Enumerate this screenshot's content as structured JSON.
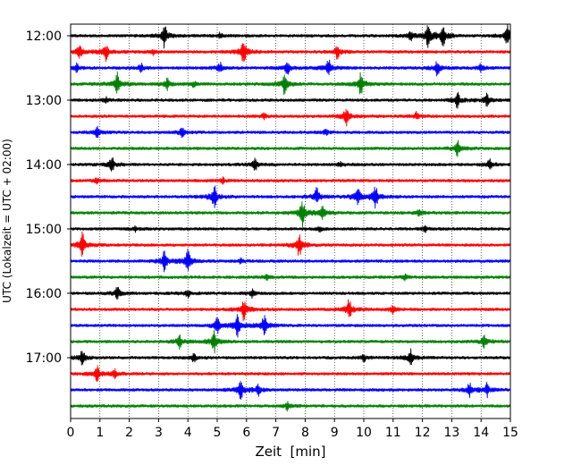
{
  "chart_data": {
    "type": "line",
    "title": "",
    "xlabel": "Zeit  [min]",
    "ylabel": "UTC (Lokalzeit = UTC + 02:00)",
    "xlim": [
      0,
      15
    ],
    "x_ticks": [
      0,
      1,
      2,
      3,
      4,
      5,
      6,
      7,
      8,
      9,
      10,
      11,
      12,
      13,
      14,
      15
    ],
    "x_tick_labels": [
      "0",
      "1",
      "2",
      "3",
      "4",
      "5",
      "6",
      "7",
      "8",
      "9",
      "10",
      "11",
      "12",
      "13",
      "14",
      "15"
    ],
    "y_tick_labels": [
      "12:00",
      "13:00",
      "14:00",
      "15:00",
      "16:00",
      "17:00"
    ],
    "y_tick_hours": [
      12,
      13,
      14,
      15,
      16,
      17
    ],
    "grid": "vertical dotted lines at each minute",
    "trace_color_cycle": [
      "#000000",
      "#ff0000",
      "#0000ff",
      "#008000"
    ],
    "traces": [
      {
        "start": "12:00",
        "events": [
          [
            3.2,
            0.9
          ],
          [
            12.2,
            0.9
          ],
          [
            12.7,
            0.8
          ],
          [
            14.9,
            0.9
          ],
          [
            11.6,
            0.3
          ],
          [
            5.1,
            0.2
          ]
        ]
      },
      {
        "start": "12:15",
        "events": [
          [
            0.3,
            0.6
          ],
          [
            1.2,
            0.7
          ],
          [
            5.9,
            1.0
          ],
          [
            9.1,
            0.5
          ],
          [
            2.8,
            0.2
          ]
        ]
      },
      {
        "start": "12:30",
        "events": [
          [
            0.2,
            0.3
          ],
          [
            2.4,
            0.3
          ],
          [
            5.1,
            0.4
          ],
          [
            7.4,
            0.6
          ],
          [
            8.8,
            0.7
          ],
          [
            12.5,
            0.6
          ],
          [
            14.0,
            0.3
          ]
        ]
      },
      {
        "start": "12:45",
        "events": [
          [
            1.6,
            0.9
          ],
          [
            3.3,
            0.4
          ],
          [
            7.3,
            0.8
          ],
          [
            9.9,
            0.9
          ],
          [
            4.2,
            0.2
          ]
        ]
      },
      {
        "start": "13:00",
        "events": [
          [
            1.2,
            0.2
          ],
          [
            13.2,
            0.6
          ],
          [
            14.2,
            0.5
          ]
        ]
      },
      {
        "start": "13:15",
        "events": [
          [
            6.6,
            0.2
          ],
          [
            9.4,
            0.7
          ],
          [
            11.8,
            0.3
          ]
        ]
      },
      {
        "start": "13:30",
        "events": [
          [
            0.9,
            0.4
          ],
          [
            3.8,
            0.4
          ],
          [
            8.7,
            0.2
          ]
        ]
      },
      {
        "start": "13:45",
        "events": [
          [
            13.2,
            0.6
          ]
        ]
      },
      {
        "start": "14:00",
        "events": [
          [
            1.4,
            0.6
          ],
          [
            6.3,
            0.5
          ],
          [
            9.2,
            0.2
          ],
          [
            14.3,
            0.4
          ]
        ]
      },
      {
        "start": "14:15",
        "events": [
          [
            0.9,
            0.2
          ],
          [
            5.2,
            0.2
          ]
        ]
      },
      {
        "start": "14:30",
        "events": [
          [
            4.9,
            0.9
          ],
          [
            8.4,
            0.7
          ],
          [
            9.8,
            0.8
          ],
          [
            10.4,
            0.8
          ]
        ]
      },
      {
        "start": "14:45",
        "events": [
          [
            7.9,
            1.0
          ],
          [
            8.6,
            0.5
          ],
          [
            11.9,
            0.3
          ]
        ]
      },
      {
        "start": "15:00",
        "events": [
          [
            2.2,
            0.2
          ],
          [
            8.5,
            0.2
          ],
          [
            12.1,
            0.2
          ]
        ]
      },
      {
        "start": "15:15",
        "events": [
          [
            0.4,
            1.0
          ],
          [
            7.8,
            0.9
          ]
        ]
      },
      {
        "start": "15:30",
        "events": [
          [
            3.2,
            0.8
          ],
          [
            4.0,
            0.9
          ],
          [
            5.8,
            0.2
          ]
        ]
      },
      {
        "start": "15:45",
        "events": [
          [
            6.7,
            0.2
          ],
          [
            11.4,
            0.2
          ]
        ]
      },
      {
        "start": "16:00",
        "events": [
          [
            1.6,
            0.5
          ],
          [
            4.0,
            0.3
          ],
          [
            6.2,
            0.3
          ]
        ]
      },
      {
        "start": "16:15",
        "events": [
          [
            5.9,
            0.8
          ],
          [
            9.5,
            0.9
          ],
          [
            11.0,
            0.3
          ]
        ]
      },
      {
        "start": "16:30",
        "events": [
          [
            5.0,
            0.7
          ],
          [
            5.7,
            0.8
          ],
          [
            6.6,
            0.8
          ]
        ]
      },
      {
        "start": "16:45",
        "events": [
          [
            3.7,
            0.5
          ],
          [
            4.9,
            0.8
          ],
          [
            14.1,
            0.5
          ]
        ]
      },
      {
        "start": "17:00",
        "events": [
          [
            0.4,
            0.6
          ],
          [
            4.2,
            0.3
          ],
          [
            10.0,
            0.3
          ],
          [
            11.6,
            0.6
          ]
        ]
      },
      {
        "start": "17:15",
        "events": [
          [
            0.9,
            0.6
          ],
          [
            1.5,
            0.3
          ]
        ]
      },
      {
        "start": "17:30",
        "events": [
          [
            5.8,
            0.7
          ],
          [
            6.4,
            0.4
          ],
          [
            13.6,
            0.5
          ],
          [
            14.2,
            0.5
          ]
        ]
      },
      {
        "start": "17:45",
        "events": [
          [
            7.4,
            0.3
          ]
        ]
      }
    ]
  }
}
